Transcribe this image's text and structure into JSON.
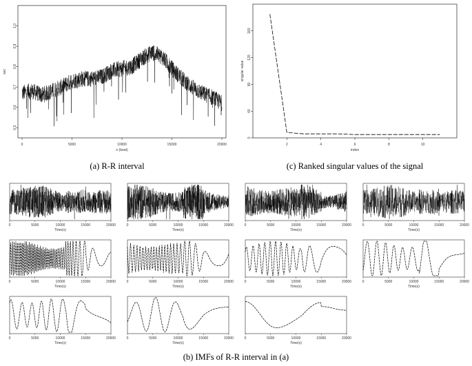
{
  "captions": {
    "rr": "(a) R-R interval",
    "singular": "(c) Ranked singular values of the signal",
    "imfs": "(b) IMFs of R-R interval in (a)"
  },
  "chart_data": [
    {
      "id": "rr",
      "type": "line",
      "xlabel": "n (beat)",
      "ylabel": "sec",
      "xlim": [
        0,
        20000
      ],
      "ylim": [
        0.45,
        1.1
      ],
      "xticks": [
        0,
        5000,
        10000,
        15000,
        20000
      ],
      "xtick_labels": [
        "0",
        "5000",
        "10000",
        "15000",
        "20000"
      ],
      "yticks": [
        0.5,
        0.6,
        0.7,
        0.8,
        0.9,
        1.0
      ],
      "ytick_labels": [
        "0.5",
        "0.6",
        "0.7",
        "0.8",
        "0.9",
        "1.0"
      ],
      "trend": {
        "x": [
          0,
          1000,
          2000,
          3000,
          4000,
          5000,
          6000,
          7000,
          8000,
          9000,
          10000,
          11000,
          12000,
          13000,
          14000,
          15000,
          16000,
          17000,
          18000,
          19000,
          20000
        ],
        "y": [
          0.67,
          0.68,
          0.66,
          0.68,
          0.7,
          0.73,
          0.74,
          0.74,
          0.75,
          0.78,
          0.79,
          0.8,
          0.84,
          0.87,
          0.85,
          0.79,
          0.74,
          0.7,
          0.67,
          0.65,
          0.62
        ]
      },
      "noise_amplitude": 0.04
    },
    {
      "id": "singular",
      "type": "line",
      "xlabel": "index",
      "ylabel": "singular value",
      "xlim": [
        0,
        12
      ],
      "ylim": [
        0,
        200
      ],
      "xticks": [
        2,
        4,
        6,
        8,
        10
      ],
      "xtick_labels": [
        "2",
        "4",
        "6",
        "8",
        "10"
      ],
      "yticks": [
        0,
        40,
        80,
        120,
        160
      ],
      "ytick_labels": [
        "0",
        "40",
        "80",
        "120",
        "160"
      ],
      "x": [
        1,
        2,
        3,
        4,
        5,
        6,
        7,
        8,
        9,
        10,
        11
      ],
      "y": [
        185,
        8,
        6,
        6,
        6,
        5,
        5,
        5,
        5,
        5,
        5
      ]
    },
    {
      "id": "imfs",
      "type": "line",
      "xlabel": "Time(s)",
      "xlim": [
        0,
        20000
      ],
      "xticks": [
        0,
        5000,
        10000,
        15000,
        20000
      ],
      "xtick_labels": [
        "0",
        "5000",
        "10000",
        "15000",
        "20000"
      ],
      "panels": [
        {
          "cycles": 900,
          "amp": 0.9
        },
        {
          "cycles": 450,
          "amp": 1.0
        },
        {
          "cycles": 220,
          "amp": 1.0
        },
        {
          "cycles": 110,
          "amp": 1.0
        },
        {
          "cycles": 55,
          "amp": 1.0
        },
        {
          "cycles": 28,
          "amp": 1.0
        },
        {
          "cycles": 14,
          "amp": 1.0
        },
        {
          "cycles": 9,
          "amp": 1.0
        },
        {
          "cycles": 8,
          "amp": 1.0
        },
        {
          "cycles": 4,
          "amp": 1.0
        },
        {
          "cycles": 1,
          "amp": 1.0
        }
      ]
    }
  ]
}
